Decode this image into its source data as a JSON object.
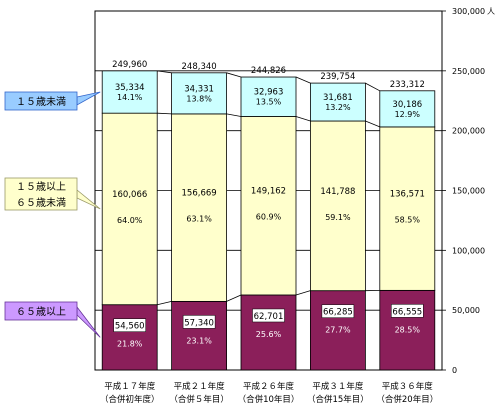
{
  "chart_data": {
    "type": "bar",
    "stacked": true,
    "categories": [
      [
        "平成１７年度",
        "（合併初年度）"
      ],
      [
        "平成２１年度",
        "（合併５年目）"
      ],
      [
        "平成２６年度",
        "（合併10年目）"
      ],
      [
        "平成３１年度",
        "（合併15年目）"
      ],
      [
        "平成３６年度",
        "（合併20年目）"
      ]
    ],
    "series": [
      {
        "name": "６５歳以上",
        "values": [
          54560,
          57340,
          62701,
          66285,
          66555
        ],
        "value_labels": [
          "54,560",
          "57,340",
          "62,701",
          "66,285",
          "66,555"
        ],
        "percents": [
          "21.8%",
          "23.1%",
          "25.6%",
          "27.7%",
          "28.5%"
        ],
        "color": "#8b1f5a",
        "label_color": "#ffffff"
      },
      {
        "name": [
          "１５歳以上",
          "６５歳未満"
        ],
        "values": [
          160066,
          156669,
          149162,
          141788,
          136571
        ],
        "value_labels": [
          "160,066",
          "156,669",
          "149,162",
          "141,788",
          "136,571"
        ],
        "percents": [
          "64.0%",
          "63.1%",
          "60.9%",
          "59.1%",
          "58.5%"
        ],
        "color": "#ffffcc",
        "label_color": "#000000"
      },
      {
        "name": "１５歳未満",
        "values": [
          35334,
          34331,
          32963,
          31681,
          30186
        ],
        "value_labels": [
          "35,334",
          "34,331",
          "32,963",
          "31,681",
          "30,186"
        ],
        "percents": [
          "14.1%",
          "13.8%",
          "13.5%",
          "13.2%",
          "12.9%"
        ],
        "color": "#ccffff",
        "label_color": "#000000"
      }
    ],
    "totals": [
      249960,
      248340,
      244826,
      239754,
      233312
    ],
    "total_labels": [
      "249,960",
      "248,340",
      "244,826",
      "239,754",
      "233,312"
    ],
    "ylim": [
      0,
      300000
    ],
    "yticks": [
      0,
      50000,
      100000,
      150000,
      200000,
      250000,
      300000
    ],
    "ytick_labels": [
      "0",
      "50,000",
      "100,000",
      "150,000",
      "200,000",
      "250,000",
      "300,000"
    ],
    "yunit": "人",
    "y_axis_side": "right",
    "grid": "horizontal",
    "connector_lines": true,
    "legend_callouts": [
      {
        "series": 2,
        "text": [
          "１５歳未満"
        ],
        "fill": "#99ccff",
        "border": "#3366cc"
      },
      {
        "series": 1,
        "text": [
          "１５歳以上",
          "６５歳未満"
        ],
        "fill": "#ffffcc",
        "border": "#999966"
      },
      {
        "series": 0,
        "text": [
          "６５歳以上"
        ],
        "fill": "#cc99ff",
        "border": "#663399"
      }
    ]
  }
}
